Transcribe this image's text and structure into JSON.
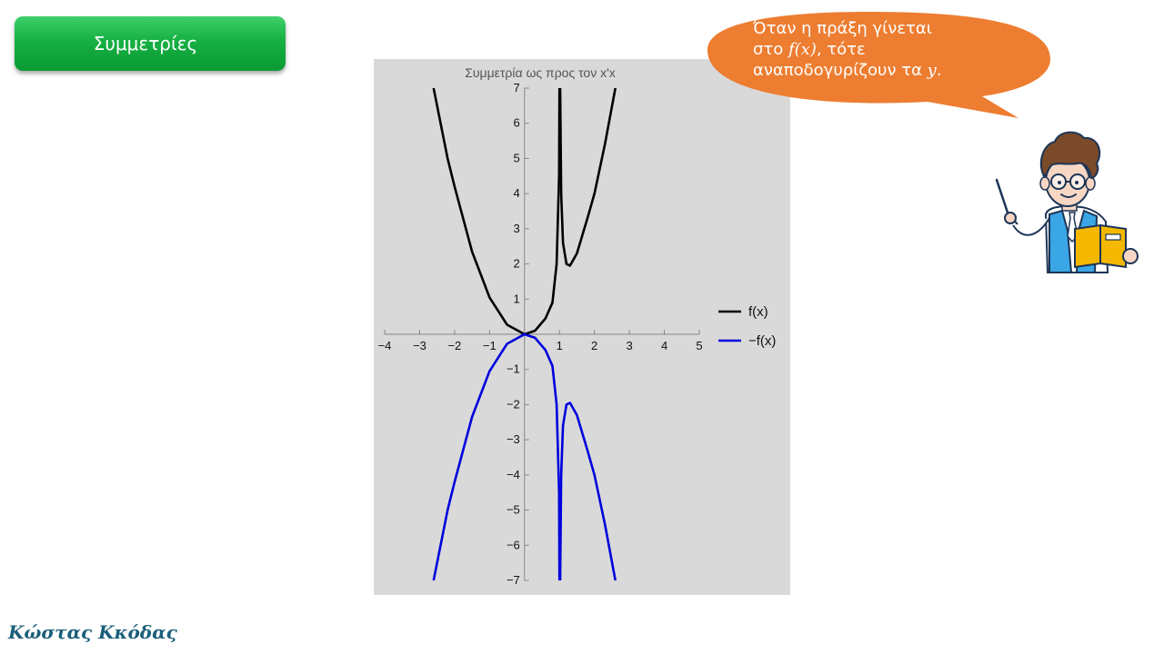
{
  "header": {
    "button_label": "Συμμετρίες"
  },
  "bubble": {
    "line1": "Όταν η πράξη γίνεται",
    "line2_prefix": "στο ",
    "line2_math": "f(x)",
    "line2_suffix": ", τότε",
    "line3_prefix": "αναποδογυρίζουν τα ",
    "line3_math": "y",
    "line3_suffix": ".",
    "color": "#ed7d31"
  },
  "footer": {
    "author": "Κώστας Κκόδας"
  },
  "chart_data": {
    "type": "line",
    "title": "Συμμετρία ως προς τον x'x",
    "xlim": [
      -4,
      5
    ],
    "ylim": [
      -7,
      7
    ],
    "x_ticks": [
      "−4",
      "−3",
      "−2",
      "−1",
      "1",
      "2",
      "3",
      "4",
      "5"
    ],
    "x_tick_values": [
      -4,
      -3,
      -2,
      -1,
      1,
      2,
      3,
      4,
      5
    ],
    "y_ticks": [
      "7",
      "6",
      "5",
      "4",
      "3",
      "2",
      "1",
      "−1",
      "−2",
      "−3",
      "−4",
      "−5",
      "−6",
      "−7"
    ],
    "y_tick_values": [
      7,
      6,
      5,
      4,
      3,
      2,
      1,
      -1,
      -2,
      -3,
      -4,
      -5,
      -6,
      -7
    ],
    "background": "#d9d9d9",
    "legend_position": "right",
    "series": [
      {
        "name": "f(x)",
        "color": "#000000",
        "segments": [
          [
            [
              -2.6,
              7
            ],
            [
              -2.2,
              5.0
            ],
            [
              -2.0,
              4.2
            ],
            [
              -1.5,
              2.35
            ],
            [
              -1.0,
              1.05
            ],
            [
              -0.5,
              0.27
            ],
            [
              0,
              0
            ],
            [
              0.3,
              0.1
            ],
            [
              0.6,
              0.45
            ],
            [
              0.8,
              0.9
            ],
            [
              0.92,
              2.0
            ],
            [
              0.99,
              4.5
            ],
            [
              1.0,
              7
            ]
          ],
          [
            [
              1.02,
              7
            ],
            [
              1.05,
              4.0
            ],
            [
              1.1,
              2.6
            ],
            [
              1.2,
              2.0
            ],
            [
              1.3,
              1.95
            ],
            [
              1.5,
              2.3
            ],
            [
              1.8,
              3.3
            ],
            [
              2.0,
              4.0
            ],
            [
              2.3,
              5.4
            ],
            [
              2.6,
              7
            ]
          ]
        ]
      },
      {
        "name": "−f(x)",
        "color": "#0000dd",
        "segments": [
          [
            [
              -2.6,
              -7
            ],
            [
              -2.2,
              -5.0
            ],
            [
              -2.0,
              -4.2
            ],
            [
              -1.5,
              -2.35
            ],
            [
              -1.0,
              -1.05
            ],
            [
              -0.5,
              -0.27
            ],
            [
              0,
              0
            ],
            [
              0.3,
              -0.1
            ],
            [
              0.6,
              -0.45
            ],
            [
              0.8,
              -0.9
            ],
            [
              0.92,
              -2.0
            ],
            [
              0.99,
              -4.5
            ],
            [
              1.0,
              -7
            ]
          ],
          [
            [
              1.02,
              -7
            ],
            [
              1.05,
              -4.0
            ],
            [
              1.1,
              -2.6
            ],
            [
              1.2,
              -2.0
            ],
            [
              1.3,
              -1.95
            ],
            [
              1.5,
              -2.3
            ],
            [
              1.8,
              -3.3
            ],
            [
              2.0,
              -4.0
            ],
            [
              2.3,
              -5.4
            ],
            [
              2.6,
              -7
            ]
          ]
        ]
      }
    ]
  }
}
